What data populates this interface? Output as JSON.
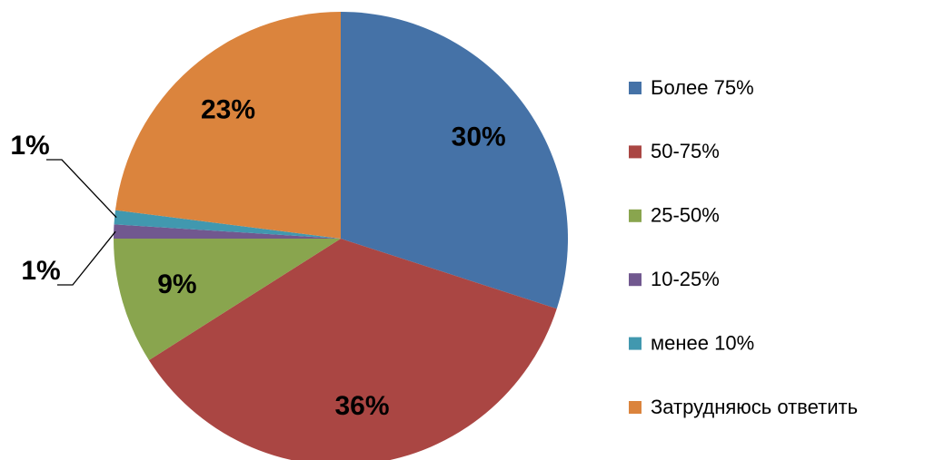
{
  "chart_data": {
    "type": "pie",
    "categories": [
      "Более 75%",
      "50-75%",
      "25-50%",
      "10-25%",
      "менее 10%",
      "Затрудняюсь ответить"
    ],
    "values": [
      30,
      36,
      9,
      1,
      1,
      23
    ],
    "value_labels": [
      "30%",
      "36%",
      "9%",
      "1%",
      "1%",
      "23%"
    ],
    "colors": [
      "#4572a7",
      "#aa4643",
      "#89a54e",
      "#71588f",
      "#4198af",
      "#db843d"
    ],
    "legend": "right"
  }
}
